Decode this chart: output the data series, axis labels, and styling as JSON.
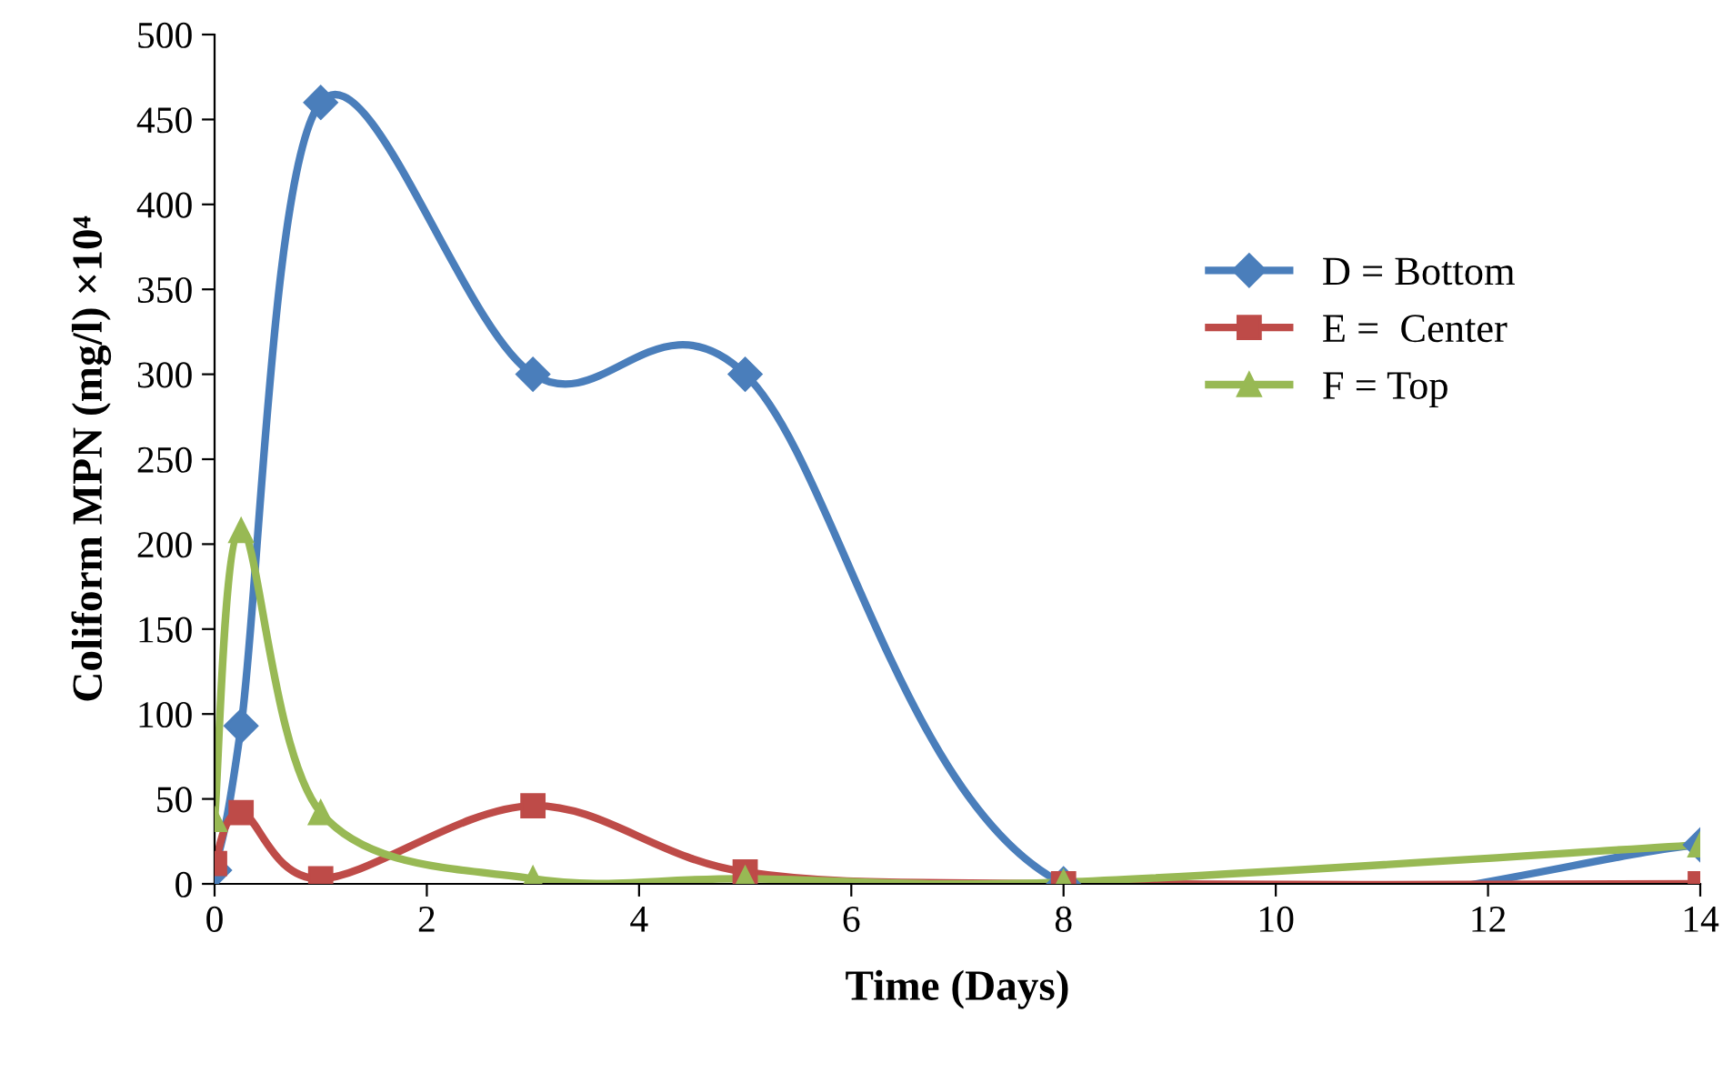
{
  "chart_data": {
    "type": "line",
    "xlabel": "Time (Days)",
    "ylabel": "Coliform MPN (mg/l) ×10⁴",
    "x": [
      0,
      0.25,
      1,
      3,
      5,
      8,
      14
    ],
    "series": [
      {
        "name": "D = Bottom",
        "color": "#4a7ebb",
        "marker": "diamond",
        "values": [
          8,
          93,
          460,
          300,
          300,
          0,
          23
        ]
      },
      {
        "name": "E =  Center",
        "color": "#be4b48",
        "marker": "square",
        "values": [
          12,
          42,
          3,
          46,
          7,
          0,
          0
        ]
      },
      {
        "name": "F = Top",
        "color": "#98b954",
        "marker": "triangle",
        "values": [
          38,
          208,
          42,
          3,
          3,
          1,
          23
        ]
      }
    ],
    "xlim": [
      0,
      14
    ],
    "xticks": [
      0,
      2,
      4,
      6,
      8,
      10,
      12,
      14
    ],
    "ylim": [
      0,
      500
    ],
    "yticks": [
      0,
      50,
      100,
      150,
      200,
      250,
      300,
      350,
      400,
      450,
      500
    ],
    "grid": false,
    "legend": "right",
    "line_style": "solid"
  }
}
